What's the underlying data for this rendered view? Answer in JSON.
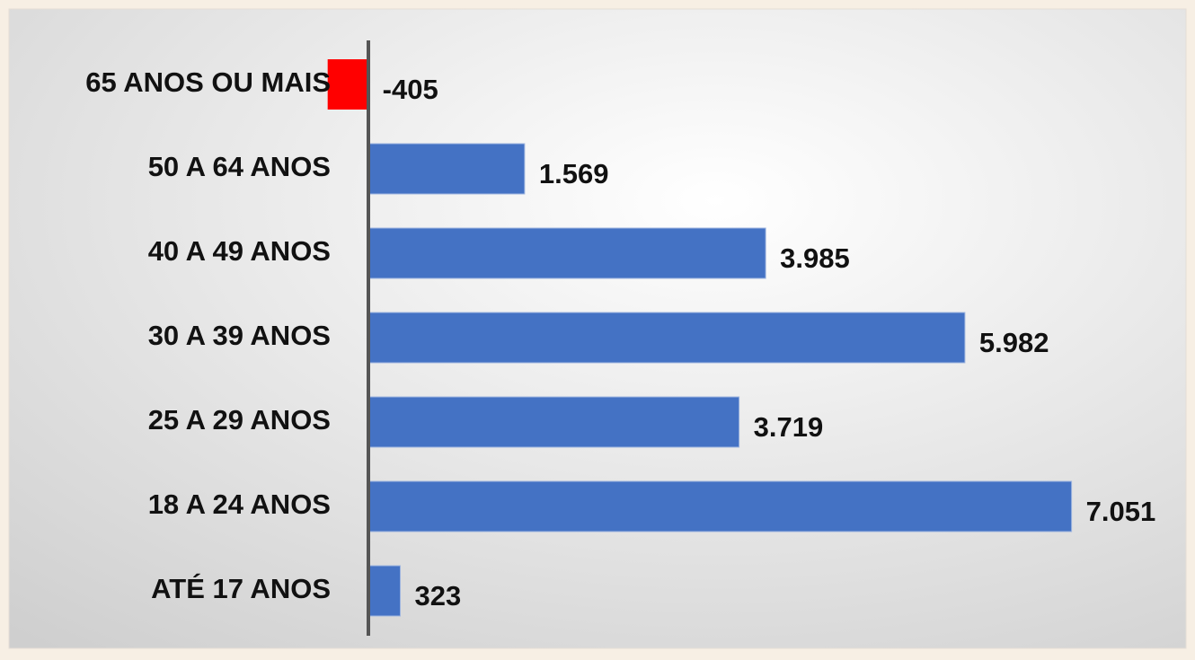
{
  "chart_data": {
    "type": "bar",
    "orientation": "horizontal",
    "categories": [
      "65 ANOS OU MAIS",
      "50 A 64 ANOS",
      "40 A 49 ANOS",
      "30 A 39 ANOS",
      "25 A 29 ANOS",
      "18 A 24 ANOS",
      "ATÉ 17 ANOS"
    ],
    "values": [
      -405,
      1569,
      3985,
      5982,
      3719,
      7051,
      323
    ],
    "value_labels": [
      "-405",
      "1.569",
      "3.985",
      "5.982",
      "3.719",
      "7.051",
      "323"
    ],
    "colors": [
      "#ff0000",
      "#4472c4",
      "#4472c4",
      "#4472c4",
      "#4472c4",
      "#4472c4",
      "#4472c4"
    ],
    "xlim": [
      -3500,
      8000
    ]
  }
}
